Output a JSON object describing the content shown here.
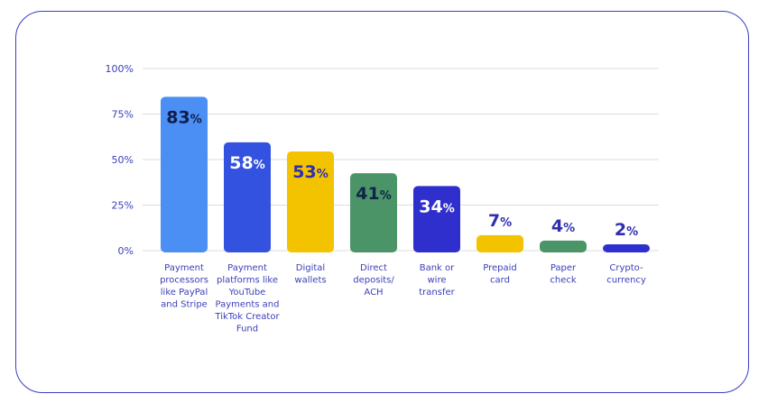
{
  "chart_data": {
    "type": "bar",
    "categories": [
      [
        "Payment",
        "processors",
        "like PayPal",
        "and Stripe"
      ],
      [
        "Payment",
        "platforms like",
        "YouTube",
        "Payments and",
        "TikTok Creator",
        "Fund"
      ],
      [
        "Digital",
        "wallets"
      ],
      [
        "Direct",
        "deposits/",
        "ACH"
      ],
      [
        "Bank or",
        "wire",
        "transfer"
      ],
      [
        "Prepaid",
        "card"
      ],
      [
        "Paper",
        "check"
      ],
      [
        "Crypto-",
        "currency"
      ]
    ],
    "values": [
      83,
      58,
      53,
      41,
      34,
      7,
      4,
      2
    ],
    "data_labels": [
      "83",
      "58",
      "53",
      "41",
      "34",
      "7",
      "4",
      "2"
    ],
    "label_suffix": "%",
    "bar_colors": [
      "#4b8ff5",
      "#3352e0",
      "#f3c300",
      "#4a9468",
      "#2e2fcc",
      "#f3c300",
      "#4a9468",
      "#2e2fcc"
    ],
    "label_colors": [
      "#0f1c4d",
      "#ffffff",
      "#2e2fb0",
      "#10244a",
      "#ffffff",
      "#2e2fb0",
      "#2e2fb0",
      "#2e2fb0"
    ],
    "yticks": [
      "0%",
      "25%",
      "50%",
      "75%",
      "100%"
    ],
    "ylim": [
      0,
      100
    ],
    "grid": true,
    "title": "",
    "xlabel": "",
    "ylabel": ""
  }
}
